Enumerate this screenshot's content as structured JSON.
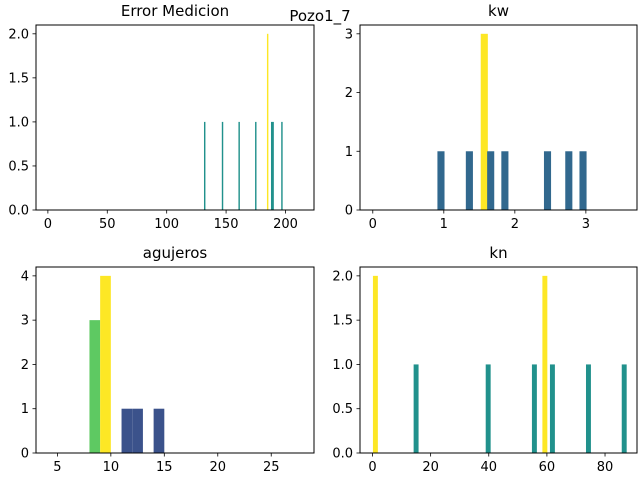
{
  "figure": {
    "suptitle": "Pozo1_7"
  },
  "chart_data": [
    {
      "type": "bar",
      "title": "Error Medicion",
      "xlabel": "",
      "ylabel": "",
      "xlim": [
        -10,
        224
      ],
      "ylim": [
        0,
        2.1
      ],
      "xticks": [
        0,
        50,
        100,
        150,
        200
      ],
      "yticks": [
        0.0,
        0.5,
        1.0,
        1.5,
        2.0
      ],
      "bars": [
        {
          "x": 132,
          "height": 1,
          "width": 1.2,
          "color": "#21918c"
        },
        {
          "x": 147,
          "height": 1,
          "width": 1.2,
          "color": "#21918c"
        },
        {
          "x": 161,
          "height": 1,
          "width": 1.2,
          "color": "#21918c"
        },
        {
          "x": 175,
          "height": 1,
          "width": 1.2,
          "color": "#21918c"
        },
        {
          "x": 185,
          "height": 2,
          "width": 1.2,
          "color": "#fde725"
        },
        {
          "x": 189,
          "height": 1,
          "width": 2.4,
          "color": "#21918c"
        },
        {
          "x": 197,
          "height": 1,
          "width": 1.2,
          "color": "#21918c"
        }
      ]
    },
    {
      "type": "bar",
      "title": "kw",
      "xlabel": "",
      "ylabel": "",
      "xlim": [
        -0.18,
        3.72
      ],
      "ylim": [
        0,
        3.15
      ],
      "xticks": [
        0,
        1,
        2,
        3
      ],
      "yticks": [
        0,
        1,
        2,
        3
      ],
      "bars": [
        {
          "x": 0.96,
          "height": 1,
          "width": 0.1,
          "color": "#31688e"
        },
        {
          "x": 1.36,
          "height": 1,
          "width": 0.1,
          "color": "#31688e"
        },
        {
          "x": 1.57,
          "height": 3,
          "width": 0.1,
          "color": "#fde725"
        },
        {
          "x": 1.66,
          "height": 1,
          "width": 0.1,
          "color": "#31688e"
        },
        {
          "x": 1.86,
          "height": 1,
          "width": 0.1,
          "color": "#31688e"
        },
        {
          "x": 2.46,
          "height": 1,
          "width": 0.1,
          "color": "#31688e"
        },
        {
          "x": 2.76,
          "height": 1,
          "width": 0.1,
          "color": "#31688e"
        },
        {
          "x": 2.96,
          "height": 1,
          "width": 0.1,
          "color": "#31688e"
        }
      ]
    },
    {
      "type": "bar",
      "title": "agujeros",
      "xlabel": "",
      "ylabel": "",
      "xlim": [
        3.0,
        29.0
      ],
      "ylim": [
        0,
        4.2
      ],
      "xticks": [
        5,
        10,
        15,
        20,
        25
      ],
      "yticks": [
        0,
        1,
        2,
        3,
        4
      ],
      "bars": [
        {
          "x": 8.5,
          "height": 3,
          "width": 1.0,
          "color": "#5ec962"
        },
        {
          "x": 9.5,
          "height": 4,
          "width": 1.0,
          "color": "#fde725"
        },
        {
          "x": 11.5,
          "height": 1,
          "width": 1.0,
          "color": "#3b528b"
        },
        {
          "x": 12.5,
          "height": 1,
          "width": 1.0,
          "color": "#3b528b"
        },
        {
          "x": 14.5,
          "height": 1,
          "width": 1.0,
          "color": "#3b528b"
        }
      ]
    },
    {
      "type": "bar",
      "title": "kn",
      "xlabel": "",
      "ylabel": "",
      "xlim": [
        -4.3,
        91.0
      ],
      "ylim": [
        0,
        2.1
      ],
      "xticks": [
        0,
        20,
        40,
        60,
        80
      ],
      "yticks": [
        0.0,
        0.5,
        1.0,
        1.5,
        2.0
      ],
      "bars": [
        {
          "x": 1.0,
          "height": 2,
          "width": 1.7,
          "color": "#fde725"
        },
        {
          "x": 15.0,
          "height": 1,
          "width": 1.7,
          "color": "#21918c"
        },
        {
          "x": 39.8,
          "height": 1,
          "width": 1.7,
          "color": "#21918c"
        },
        {
          "x": 55.7,
          "height": 1,
          "width": 1.7,
          "color": "#21918c"
        },
        {
          "x": 59.3,
          "height": 2,
          "width": 1.7,
          "color": "#fde725"
        },
        {
          "x": 61.9,
          "height": 1,
          "width": 1.7,
          "color": "#21918c"
        },
        {
          "x": 74.3,
          "height": 1,
          "width": 1.7,
          "color": "#21918c"
        },
        {
          "x": 86.6,
          "height": 1,
          "width": 1.7,
          "color": "#21918c"
        }
      ]
    }
  ]
}
